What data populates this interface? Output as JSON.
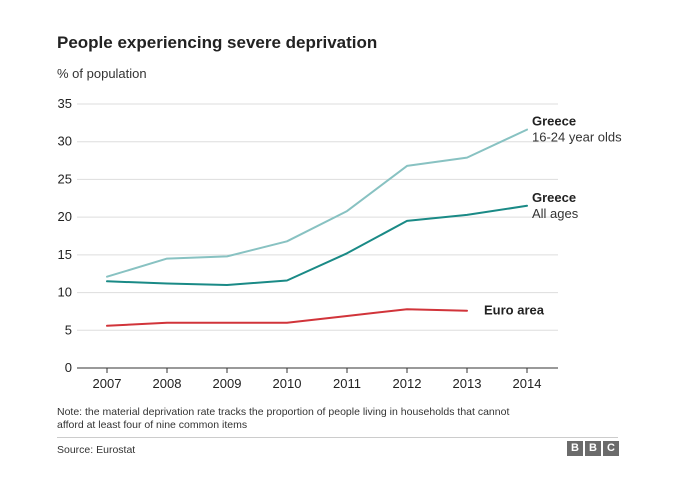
{
  "chart_data": {
    "type": "line",
    "title": "People experiencing severe deprivation",
    "ylabel": "% of population",
    "xlabel": "",
    "ylim": [
      0,
      35
    ],
    "yticks": [
      0,
      5,
      10,
      15,
      20,
      25,
      30,
      35
    ],
    "x": [
      "2007",
      "2008",
      "2009",
      "2010",
      "2011",
      "2012",
      "2013",
      "2014"
    ],
    "series": [
      {
        "name": "Greece 16-24 year olds",
        "label_line1": "Greece",
        "label_line2": "16-24 year olds",
        "color": "#88c2c2",
        "values": [
          12.1,
          14.5,
          14.8,
          16.8,
          20.8,
          26.8,
          27.9,
          31.6
        ]
      },
      {
        "name": "Greece All ages",
        "label_line1": "Greece",
        "label_line2": "All ages",
        "color": "#1a8a86",
        "values": [
          11.5,
          11.2,
          11.0,
          11.6,
          15.2,
          19.5,
          20.3,
          21.5
        ]
      },
      {
        "name": "Euro area",
        "label_line1": "Euro area",
        "label_line2": "",
        "color": "#d1343a",
        "values": [
          5.6,
          6.0,
          6.0,
          6.0,
          6.9,
          7.8,
          7.6,
          null
        ]
      }
    ]
  },
  "footer": {
    "note": "Note: the material deprivation rate tracks the proportion of people living in households that cannot afford at least four of nine common items",
    "source": "Source: Eurostat",
    "logo_letters": [
      "B",
      "B",
      "C"
    ]
  }
}
